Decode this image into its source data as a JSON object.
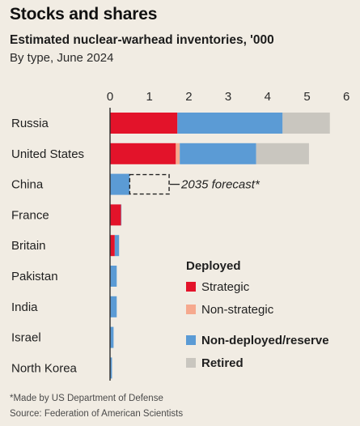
{
  "header": {
    "title": "Stocks and shares",
    "subtitle": "Estimated nuclear-warhead inventories, '000",
    "subsubtitle": "By type, June 2024"
  },
  "footer": {
    "footnote": "*Made by US Department of Defense",
    "source": "Source: Federation of American Scientists"
  },
  "colors": {
    "strategic": "#e3132a",
    "non_strategic": "#f6a98e",
    "non_deployed": "#5b9bd5",
    "retired": "#c9c6bf",
    "axis": "#2a2a2a",
    "gridline": "#b8b2a8"
  },
  "chart_data": {
    "type": "bar",
    "orientation": "horizontal",
    "stacked": true,
    "categories": [
      "Russia",
      "United States",
      "China",
      "France",
      "Britain",
      "Pakistan",
      "India",
      "Israel",
      "North Korea"
    ],
    "series": [
      {
        "name": "Strategic",
        "color_key": "strategic",
        "values": [
          1.71,
          1.67,
          0,
          0.28,
          0.12,
          0,
          0,
          0,
          0
        ]
      },
      {
        "name": "Non-strategic",
        "color_key": "non_strategic",
        "values": [
          0,
          0.1,
          0,
          0,
          0,
          0,
          0,
          0,
          0
        ]
      },
      {
        "name": "Non-deployed/reserve",
        "color_key": "non_deployed",
        "values": [
          2.67,
          1.94,
          0.5,
          0.01,
          0.11,
          0.17,
          0.17,
          0.09,
          0.05
        ]
      },
      {
        "name": "Retired",
        "color_key": "retired",
        "values": [
          1.2,
          1.34,
          0,
          0,
          0,
          0,
          0,
          0,
          0
        ]
      }
    ],
    "forecast": {
      "category": "China",
      "value": 1.5,
      "label": "2035 forecast*"
    },
    "xlim": [
      0,
      6
    ],
    "xticks": [
      0,
      1,
      2,
      3,
      4,
      5,
      6
    ],
    "xaxis_position": "top",
    "grid": false,
    "legend": {
      "placement": "bottom-right",
      "groups": [
        {
          "heading": "Deployed",
          "items": [
            {
              "label": "Strategic",
              "color_key": "strategic"
            },
            {
              "label": "Non-strategic",
              "color_key": "non_strategic"
            }
          ]
        },
        {
          "heading": "",
          "items": [
            {
              "label": "Non-deployed/reserve",
              "color_key": "non_deployed"
            },
            {
              "label": "Retired",
              "color_key": "retired"
            }
          ]
        }
      ]
    }
  }
}
